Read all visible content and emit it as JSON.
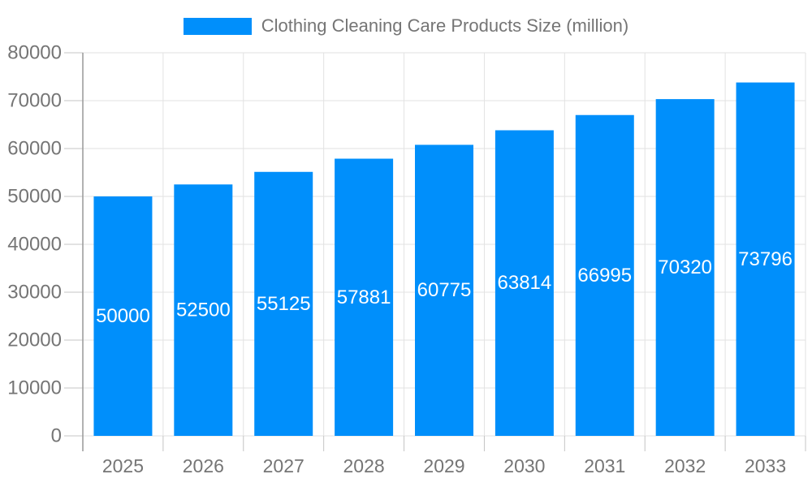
{
  "legend": {
    "label": "Clothing Cleaning Care Products Size (million)",
    "swatch_color": "#008FFB",
    "text_color": "#757575"
  },
  "chart_data": {
    "type": "bar",
    "title": "",
    "xlabel": "",
    "ylabel": "",
    "categories": [
      "2025",
      "2026",
      "2027",
      "2028",
      "2029",
      "2030",
      "2031",
      "2032",
      "2033"
    ],
    "series": [
      {
        "name": "Clothing Cleaning Care Products Size (million)",
        "values": [
          50000,
          52500,
          55125,
          57881,
          60775,
          63814,
          66995,
          70320,
          73796
        ]
      }
    ],
    "value_labels": [
      "50000",
      "52500",
      "55125",
      "57881",
      "60775",
      "63814",
      "66995",
      "70320",
      "73796"
    ],
    "ylim": [
      0,
      80000
    ],
    "ytick_interval": 10000,
    "ytick_labels": [
      "0",
      "10000",
      "20000",
      "30000",
      "40000",
      "50000",
      "60000",
      "70000",
      "80000"
    ],
    "grid": true,
    "legend_position": "top",
    "colors": {
      "bar": "#008FFB",
      "value_label": "#ffffff",
      "axis_text": "#757575",
      "grid_line": "#e2e2e2",
      "tick_line": "#c4c4c4",
      "axis_line": "#999999",
      "background": "#ffffff"
    }
  }
}
